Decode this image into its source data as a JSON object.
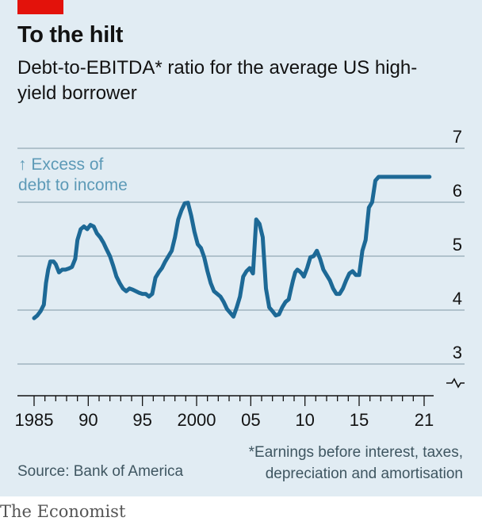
{
  "header": {
    "title": "To the hilt",
    "subtitle": "Debt-to-EBITDA* ratio for the average US high-yield borrower"
  },
  "annotation": {
    "arrow": "↑",
    "line1": "Excess of",
    "line2": "debt to income"
  },
  "footer": {
    "footnote": "*Earnings before interest, taxes, depreciation and amortisation",
    "source": "Source: Bank of America",
    "brand": "The Economist"
  },
  "colors": {
    "line": "#1d6996",
    "annotation": "#5d9ab7",
    "grid": "#a0b4c0",
    "text": "#121212",
    "panel": "#e1ecf3",
    "accent": "#e3120b"
  },
  "chart_data": {
    "type": "line",
    "title": "To the hilt",
    "subtitle": "Debt-to-EBITDA* ratio for the average US high-yield borrower",
    "xlim": [
      1983.8,
      2022.2
    ],
    "ylim": [
      2.6,
      7
    ],
    "x_ticks": [
      1985,
      1990,
      1995,
      2000,
      2005,
      2010,
      2015,
      2021
    ],
    "x_tick_labels": [
      "1985",
      "90",
      "95",
      "2000",
      "05",
      "10",
      "15",
      "21"
    ],
    "y_ticks": [
      3,
      4,
      5,
      6,
      7
    ],
    "y_tick_labels": [
      "3",
      "4",
      "5",
      "6",
      "7"
    ],
    "y_axis_side": "right",
    "axis_break": true,
    "grid": "horizontal",
    "series": [
      {
        "x": [
          1985,
          1985.3,
          1985.6,
          1985.9,
          1986.1,
          1986.3,
          1986.5,
          1986.8,
          1987,
          1987.3,
          1987.6,
          1987.9,
          1988.2,
          1988.5,
          1988.8,
          1989.0,
          1989.3,
          1989.6,
          1989.9,
          1990.2,
          1990.5,
          1990.8,
          1991.1,
          1991.4,
          1991.7,
          1992.0,
          1992.3,
          1992.6,
          1992.9,
          1993.2,
          1993.5,
          1993.8,
          1994.1,
          1994.4,
          1994.7,
          1995.0,
          1995.3,
          1995.6,
          1995.9,
          1996.2,
          1996.5,
          1996.8,
          1997.1,
          1997.4,
          1997.7,
          1998.0,
          1998.3,
          1998.6,
          1998.9,
          1999.2,
          1999.5,
          1999.8,
          2000.1,
          2000.4,
          2000.7,
          2001.0,
          2001.3,
          2001.6,
          2001.9,
          2002.2,
          2002.5,
          2002.8,
          2003.1,
          2003.4,
          2003.7,
          2004.0,
          2004.3,
          2004.6,
          2004.9,
          2005.2,
          2005.5,
          2005.8,
          2006.1,
          2006.4,
          2006.7,
          2007.0,
          2007.3,
          2007.6,
          2007.9,
          2008.2,
          2008.5,
          2008.7,
          2008.9,
          2009.1,
          2009.3,
          2009.5,
          2009.7,
          2009.9,
          2010.2,
          2010.5,
          2010.8,
          2011.1,
          2011.4,
          2011.7,
          2012.0,
          2012.3,
          2012.6,
          2012.9,
          2013.2,
          2013.5,
          2013.8,
          2014.1,
          2014.4,
          2014.7,
          2015.0,
          2015.3,
          2015.6,
          2015.9,
          2016.2,
          2016.5,
          2016.8,
          2017.1,
          2017.4,
          2017.7,
          2018.0,
          2018.3,
          2018.6,
          2018.9,
          2019.2,
          2019.5,
          2019.8,
          2020.1,
          2020.3,
          2020.5,
          2020.7,
          2020.9,
          2021.1,
          2021.3,
          2021.5
        ],
        "y": [
          3.85,
          3.9,
          3.98,
          4.1,
          4.5,
          4.75,
          4.9,
          4.9,
          4.85,
          4.7,
          4.75,
          4.75,
          4.77,
          4.8,
          4.95,
          5.3,
          5.5,
          5.55,
          5.5,
          5.58,
          5.55,
          5.42,
          5.35,
          5.25,
          5.12,
          5.0,
          4.82,
          4.62,
          4.5,
          4.4,
          4.35,
          4.4,
          4.38,
          4.35,
          4.32,
          4.3,
          4.3,
          4.25,
          4.3,
          4.6,
          4.7,
          4.78,
          4.9,
          5.0,
          5.1,
          5.35,
          5.68,
          5.85,
          5.98,
          5.99,
          5.75,
          5.45,
          5.22,
          5.15,
          4.98,
          4.72,
          4.5,
          4.35,
          4.3,
          4.25,
          4.15,
          4.02,
          3.95,
          3.88,
          4.05,
          4.25,
          4.62,
          4.72,
          4.78,
          4.68,
          5.68,
          5.6,
          5.35,
          4.4,
          4.05,
          3.98,
          3.9,
          3.92,
          4.05,
          4.15,
          4.2,
          4.38,
          4.55,
          4.7,
          4.75,
          4.72,
          4.68,
          4.62,
          4.78,
          4.98,
          5.0,
          5.1,
          4.95,
          4.75,
          4.65,
          4.55,
          4.4,
          4.3,
          4.3,
          4.4,
          4.55,
          4.68,
          4.72,
          4.65,
          4.65,
          5.1,
          5.3,
          5.9,
          6.0,
          6.4,
          6.47,
          6.47,
          6.47,
          6.47,
          6.47,
          6.47,
          6.47,
          6.47,
          6.47,
          6.47,
          6.47,
          6.47,
          6.47,
          6.47,
          6.47,
          6.47,
          6.47,
          6.47,
          6.47
        ]
      }
    ]
  }
}
